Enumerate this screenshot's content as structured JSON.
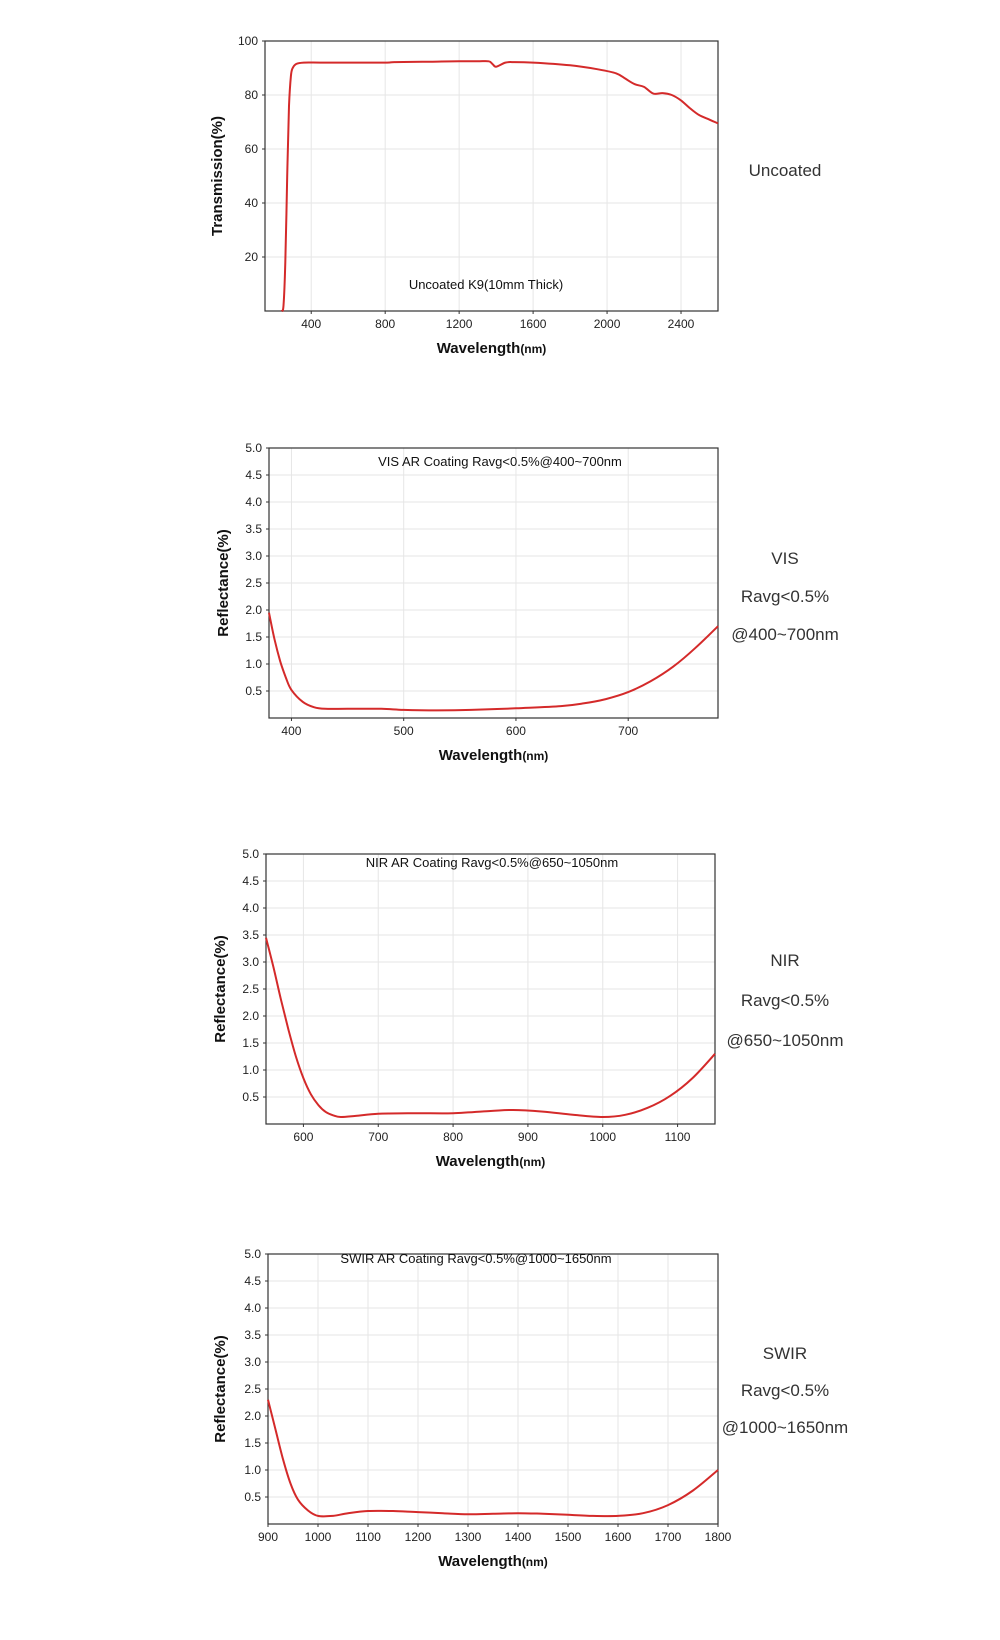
{
  "chart_data": [
    {
      "type": "line",
      "ylabel": "Transmission(%)",
      "xlabel": "Wavelength",
      "xunit": "(nm)",
      "annotation": "Uncoated K9(10mm Thick)",
      "xlim": [
        150,
        2600
      ],
      "ylim": [
        0,
        100
      ],
      "x_ticks": [
        400,
        800,
        1200,
        1600,
        2000,
        2400
      ],
      "y_ticks": [
        20,
        40,
        60,
        80,
        100
      ],
      "x_grid": [
        400,
        800,
        1200,
        1600,
        2000,
        2400
      ],
      "y_grid": [
        20,
        40,
        60,
        80
      ],
      "series": [
        {
          "color": "#d42a2a",
          "x": [
            240,
            250,
            260,
            270,
            280,
            290,
            300,
            320,
            360,
            450,
            600,
            800,
            850,
            1000,
            1200,
            1300,
            1360,
            1380,
            1400,
            1450,
            1500,
            1600,
            1800,
            1950,
            2050,
            2100,
            2150,
            2200,
            2250,
            2300,
            2350,
            2400,
            2450,
            2500,
            2550,
            2600
          ],
          "y": [
            0,
            2,
            18,
            50,
            76,
            87,
            90,
            91.5,
            92,
            92,
            92,
            92,
            92.2,
            92.3,
            92.5,
            92.5,
            92.5,
            91.5,
            90.5,
            92,
            92.2,
            92,
            91,
            89.5,
            88,
            86,
            84,
            83,
            80.5,
            80.7,
            80,
            78,
            75,
            72.5,
            71,
            69.5
          ]
        }
      ],
      "side_lines": [
        "Uncoated"
      ]
    },
    {
      "type": "line",
      "ylabel": "Reflectance(%)",
      "xlabel": "Wavelength",
      "xunit": "(nm)",
      "annotation": "VIS AR Coating Ravg<0.5%@400~700nm",
      "xlim": [
        380,
        780
      ],
      "ylim": [
        0,
        5
      ],
      "x_ticks": [
        400,
        500,
        600,
        700
      ],
      "y_ticks": [
        0.5,
        1.0,
        1.5,
        2.0,
        2.5,
        3.0,
        3.5,
        4.0,
        4.5,
        5.0
      ],
      "x_grid": [
        400,
        500,
        600,
        700
      ],
      "y_grid": [
        0.5,
        1.0,
        1.5,
        2.0,
        2.5,
        3.0,
        3.5,
        4.0,
        4.5
      ],
      "series": [
        {
          "color": "#d42a2a",
          "x": [
            380,
            385,
            390,
            395,
            400,
            410,
            420,
            430,
            450,
            480,
            500,
            530,
            560,
            600,
            640,
            660,
            680,
            700,
            720,
            740,
            760,
            780
          ],
          "y": [
            1.95,
            1.45,
            1.05,
            0.75,
            0.52,
            0.3,
            0.2,
            0.17,
            0.17,
            0.17,
            0.15,
            0.14,
            0.15,
            0.18,
            0.22,
            0.27,
            0.35,
            0.48,
            0.68,
            0.95,
            1.3,
            1.7
          ]
        }
      ],
      "side_lines": [
        "VIS",
        "Ravg<0.5%",
        "@400~700nm"
      ]
    },
    {
      "type": "line",
      "ylabel": "Reflectance(%)",
      "xlabel": "Wavelength",
      "xunit": "(nm)",
      "annotation": "NIR AR Coating Ravg<0.5%@650~1050nm",
      "xlim": [
        550,
        1150
      ],
      "ylim": [
        0,
        5
      ],
      "x_ticks": [
        600,
        700,
        800,
        900,
        1000,
        1100
      ],
      "y_ticks": [
        0.5,
        1.0,
        1.5,
        2.0,
        2.5,
        3.0,
        3.5,
        4.0,
        4.5,
        5.0
      ],
      "x_grid": [
        600,
        700,
        800,
        900,
        1000,
        1100
      ],
      "y_grid": [
        0.5,
        1.0,
        1.5,
        2.0,
        2.5,
        3.0,
        3.5,
        4.0,
        4.5
      ],
      "series": [
        {
          "color": "#d42a2a",
          "x": [
            550,
            560,
            570,
            580,
            590,
            600,
            610,
            620,
            630,
            640,
            650,
            670,
            700,
            750,
            800,
            850,
            880,
            920,
            960,
            1000,
            1030,
            1060,
            1090,
            1120,
            1150
          ],
          "y": [
            3.45,
            2.9,
            2.3,
            1.75,
            1.25,
            0.85,
            0.55,
            0.35,
            0.22,
            0.16,
            0.13,
            0.15,
            0.19,
            0.2,
            0.2,
            0.24,
            0.26,
            0.23,
            0.17,
            0.13,
            0.17,
            0.3,
            0.52,
            0.85,
            1.3
          ]
        }
      ],
      "side_lines": [
        "NIR",
        "Ravg<0.5%",
        "@650~1050nm"
      ]
    },
    {
      "type": "line",
      "ylabel": "Reflectance(%)",
      "xlabel": "Wavelength",
      "xunit": "(nm)",
      "annotation": "SWIR AR Coating Ravg<0.5%@1000~1650nm",
      "xlim": [
        900,
        1800
      ],
      "ylim": [
        0,
        5
      ],
      "x_ticks": [
        900,
        1000,
        1100,
        1200,
        1300,
        1400,
        1500,
        1600,
        1700,
        1800
      ],
      "y_ticks": [
        0.5,
        1.0,
        1.5,
        2.0,
        2.5,
        3.0,
        3.5,
        4.0,
        4.5,
        5.0
      ],
      "x_grid": [
        1000,
        1100,
        1200,
        1300,
        1400,
        1500,
        1600,
        1700
      ],
      "y_grid": [
        0.5,
        1.0,
        1.5,
        2.0,
        2.5,
        3.0,
        3.5,
        4.0,
        4.5
      ],
      "series": [
        {
          "color": "#d42a2a",
          "x": [
            900,
            915,
            930,
            945,
            960,
            980,
            1000,
            1030,
            1060,
            1100,
            1150,
            1200,
            1250,
            1300,
            1350,
            1400,
            1450,
            1500,
            1550,
            1600,
            1650,
            1700,
            1750,
            1800
          ],
          "y": [
            2.3,
            1.75,
            1.2,
            0.75,
            0.45,
            0.25,
            0.15,
            0.15,
            0.2,
            0.24,
            0.24,
            0.22,
            0.2,
            0.18,
            0.19,
            0.2,
            0.19,
            0.17,
            0.15,
            0.15,
            0.2,
            0.35,
            0.62,
            1.0
          ]
        }
      ],
      "side_lines": [
        "SWIR",
        "Ravg<0.5%",
        "@1000~1650nm"
      ]
    }
  ]
}
